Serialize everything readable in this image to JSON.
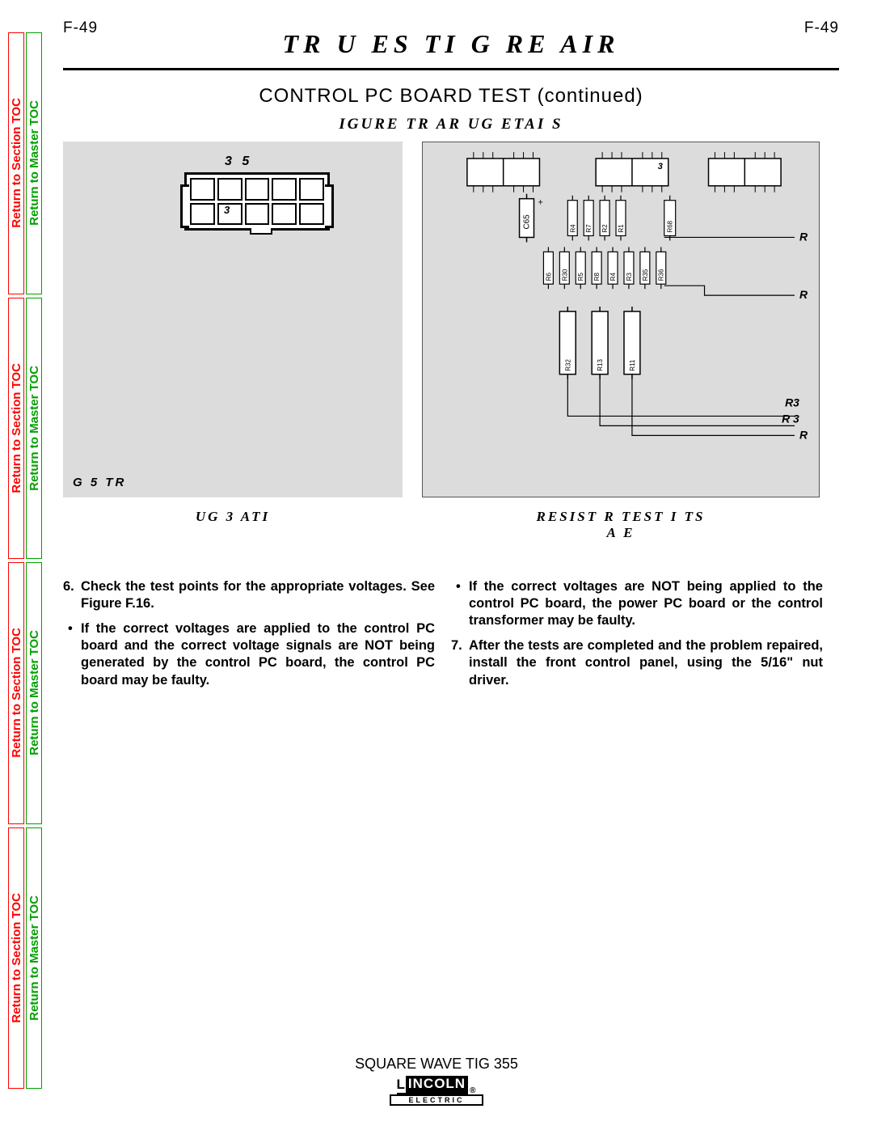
{
  "page_code": "F-49",
  "domain_title": "TR  U   ES     TI  G   RE  AIR",
  "subtitle": "CONTROL PC BOARD TEST   (continued)",
  "figure_title": "IGURE          TR       AR    UG  ETAI S",
  "side_tabs": {
    "section": "Return to Section TOC",
    "master": "Return to Master TOC"
  },
  "left_fig": {
    "plug_top_label": "3     5",
    "plug_inside_label": "3",
    "bottom_label": "G  5              TR",
    "caption": "UG    3     ATI"
  },
  "right_fig": {
    "caption_line1": "RESIST  R TEST     I  TS",
    "caption_line2": "A      E",
    "r_labels": {
      "top": "R",
      "mid": "R",
      "r3": "R3",
      "r_3": "R 3",
      "bot": "R"
    },
    "chip_label": "3",
    "cap_label": "C65",
    "row1_res": [
      "R4",
      "R7",
      "R2",
      "R1"
    ],
    "row1_end": "R68",
    "row2_res": [
      "R6",
      "R30",
      "R5",
      "R8",
      "R4",
      "R3",
      "R35",
      "R36"
    ],
    "row3_res": [
      "R32",
      "R13",
      "R11"
    ]
  },
  "body": {
    "left": {
      "item6": "Check the test points for the appropriate voltages.  See Figure F.16.",
      "bullet": "If the correct voltages are applied to the control PC board and the correct voltage signals are NOT being generated by the control PC board, the control PC board may be faulty."
    },
    "right": {
      "bullet": "If the correct voltages are NOT being applied to the control PC board, the power PC board or the control transformer may be faulty.",
      "item7": "After the tests are completed and the prob­lem repaired, install the front control panel, using the 5/16\" nut driver."
    }
  },
  "footer": {
    "product": "SQUARE WAVE TIG 355",
    "logo_l": "L",
    "logo_incoln": "INCOLN",
    "logo_reg": "®",
    "logo_sub": "ELECTRIC"
  },
  "colors": {
    "red": "#ff0000",
    "green": "#00a000",
    "panel_bg": "#dcdcdc"
  }
}
